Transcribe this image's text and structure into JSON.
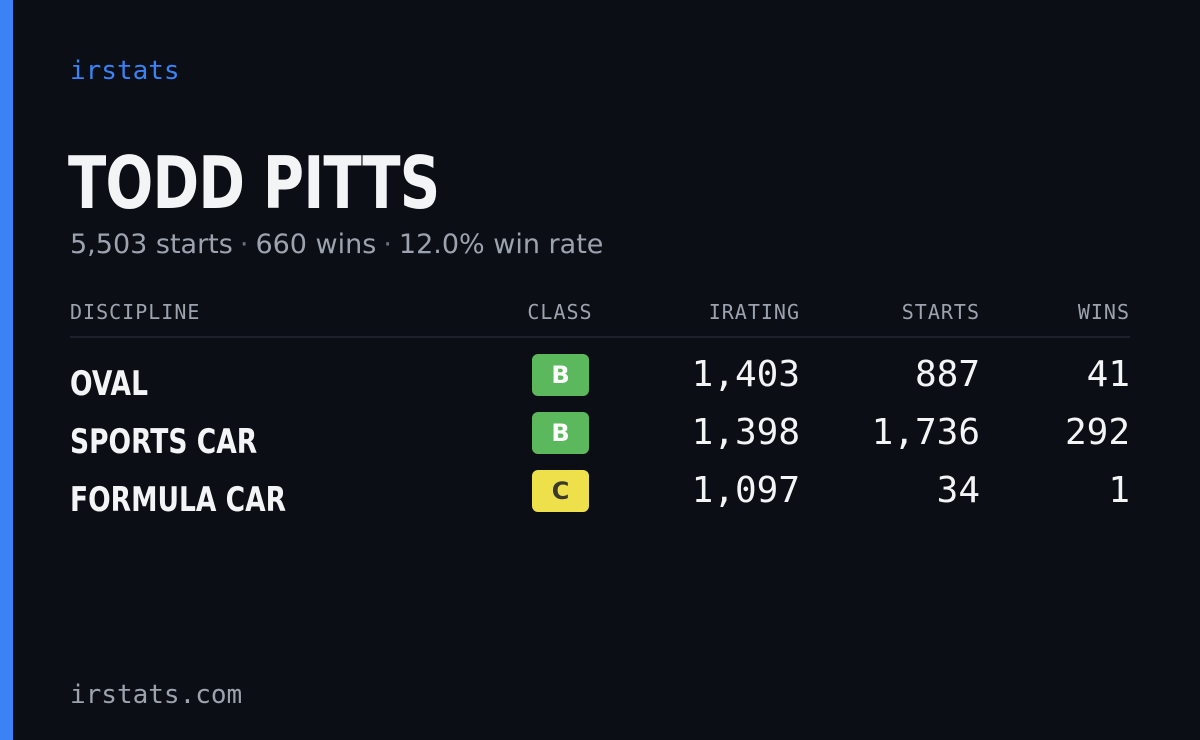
{
  "brand": "irstats",
  "driver": {
    "name": "TODD PITTS",
    "starts_text": "5,503 starts",
    "wins_text": "660 wins",
    "win_rate_text": "12.0% win rate",
    "separator": "·"
  },
  "table": {
    "headers": {
      "discipline": "DISCIPLINE",
      "class": "CLASS",
      "irating": "IRATING",
      "starts": "STARTS",
      "wins": "WINS"
    },
    "rows": [
      {
        "discipline": "OVAL",
        "class": "B",
        "class_color": "#5cb85c",
        "class_text_color": "#ffffff",
        "irating": "1,403",
        "starts": "887",
        "wins": "41"
      },
      {
        "discipline": "SPORTS CAR",
        "class": "B",
        "class_color": "#5cb85c",
        "class_text_color": "#ffffff",
        "irating": "1,398",
        "starts": "1,736",
        "wins": "292"
      },
      {
        "discipline": "FORMULA CAR",
        "class": "C",
        "class_color": "#ede04a",
        "class_text_color": "#3a3a2a",
        "irating": "1,097",
        "starts": "34",
        "wins": "1"
      }
    ]
  },
  "footer": "irstats.com",
  "colors": {
    "accent": "#3b82f6",
    "background": "#0b0e15",
    "class_b": "#5cb85c",
    "class_c": "#ede04a"
  }
}
